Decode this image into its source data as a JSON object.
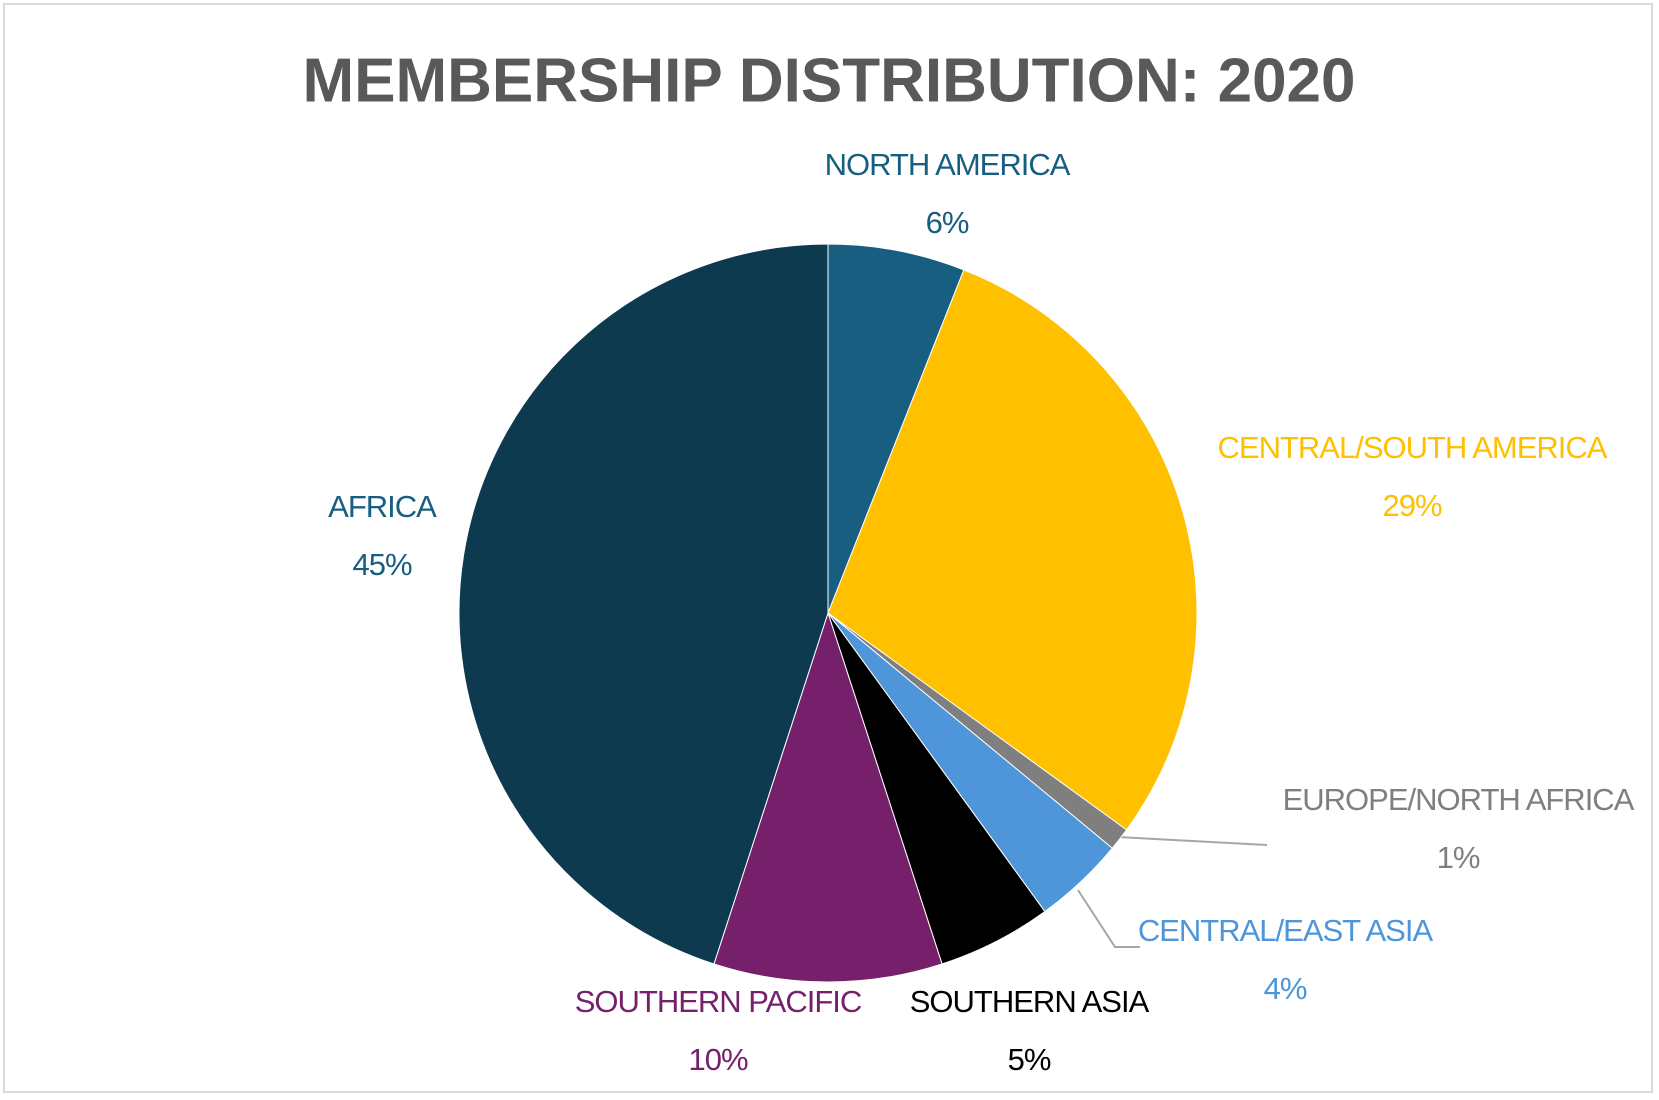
{
  "chart_data": {
    "type": "pie",
    "title": "MEMBERSHIP DISTRIBUTION: 2020",
    "categories": [
      "NORTH AMERICA",
      "CENTRAL/SOUTH AMERICA",
      "EUROPE/NORTH AFRICA",
      "CENTRAL/EAST ASIA",
      "SOUTHERN ASIA",
      "SOUTHERN PACIFIC",
      "AFRICA"
    ],
    "values": [
      6,
      29,
      1,
      4,
      5,
      10,
      45
    ],
    "value_labels": [
      "6%",
      "29%",
      "1%",
      "4%",
      "5%",
      "10%",
      "45%"
    ],
    "colors": [
      "#175e80",
      "#ffc000",
      "#7f7f7f",
      "#4e95d9",
      "#000000",
      "#76206b",
      "#0e3a50"
    ],
    "label_colors": [
      "#175e80",
      "#ffc000",
      "#7f7f7f",
      "#4e95d9",
      "#000000",
      "#76206b",
      "#175e80"
    ]
  }
}
